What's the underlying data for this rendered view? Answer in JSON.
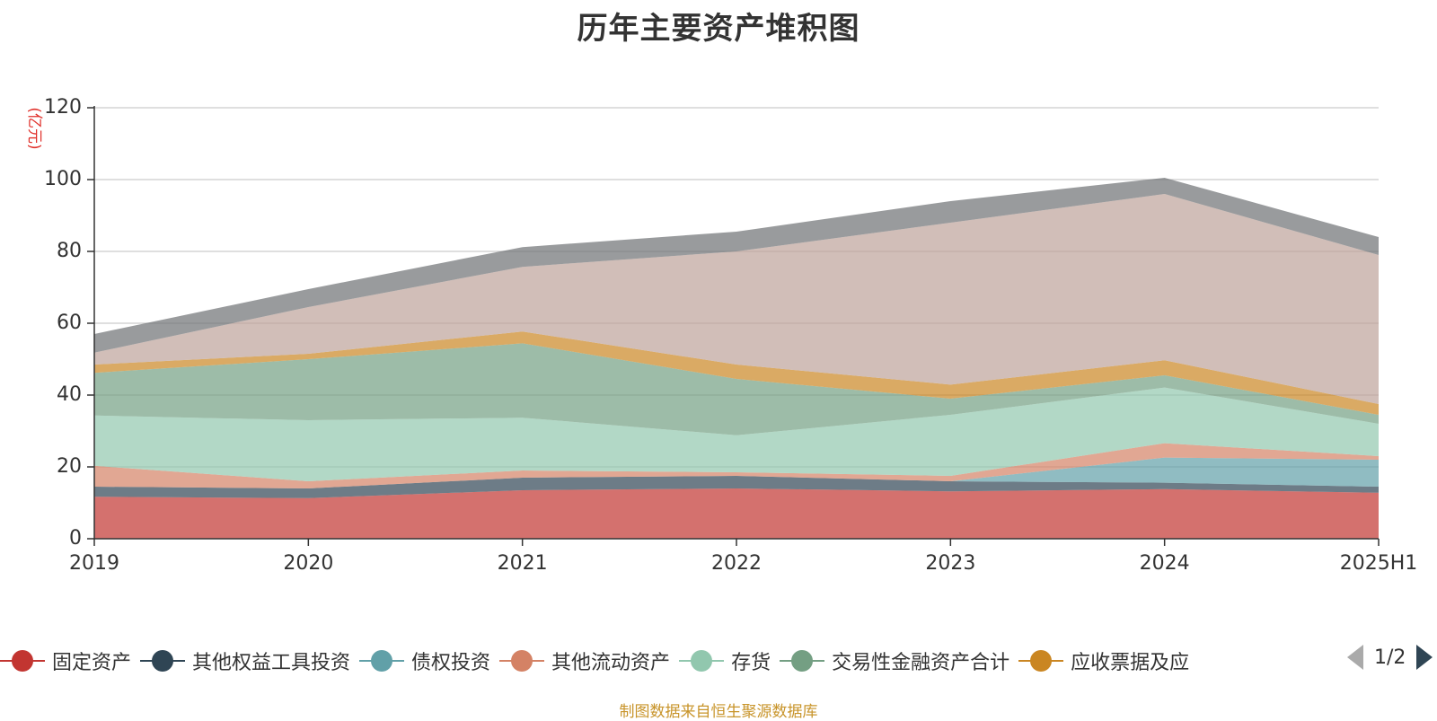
{
  "chart_data": {
    "type": "area",
    "stacked": true,
    "title": "历年主要资产堆积图",
    "ylabel": "(亿元)",
    "ylim": [
      0,
      120
    ],
    "yticks": [
      0,
      20,
      40,
      60,
      80,
      100,
      120
    ],
    "categories": [
      "2019",
      "2020",
      "2021",
      "2022",
      "2023",
      "2024",
      "2025H1"
    ],
    "grid": true,
    "legend_position": "bottom",
    "series": [
      {
        "name": "固定资产",
        "color": "#c23531",
        "values": [
          11.7,
          11.3,
          13.5,
          14.0,
          13.2,
          13.8,
          12.8
        ]
      },
      {
        "name": "其他权益工具投资",
        "color": "#2f4554",
        "values": [
          2.8,
          2.7,
          3.5,
          3.5,
          2.8,
          1.8,
          1.7
        ]
      },
      {
        "name": "债权投资",
        "color": "#61a0a8",
        "values": [
          0,
          0,
          0,
          0,
          0,
          7.0,
          7.5
        ]
      },
      {
        "name": "其他流动资产",
        "color": "#d48265",
        "values": [
          5.8,
          2.0,
          2.0,
          1.0,
          1.5,
          4.0,
          1.0
        ]
      },
      {
        "name": "存货",
        "color": "#91c7ae",
        "values": [
          14.0,
          17.0,
          14.7,
          10.3,
          17.0,
          15.5,
          9.0
        ]
      },
      {
        "name": "交易性金融资产合计",
        "color": "#749f83",
        "values": [
          11.9,
          17.0,
          20.7,
          15.7,
          4.5,
          3.4,
          2.5
        ]
      },
      {
        "name": "应收票据及应",
        "color": "#ca8622",
        "values": [
          2.3,
          1.5,
          3.3,
          4.0,
          3.9,
          4.2,
          3.0
        ]
      },
      {
        "name": "",
        "color": "#bda29a",
        "values": [
          3.3,
          13.0,
          18.0,
          31.5,
          45.1,
          46.3,
          41.5
        ]
      },
      {
        "name": "",
        "color": "#6e7074",
        "values": [
          5.2,
          5.0,
          5.5,
          5.5,
          6.0,
          4.5,
          5.0
        ]
      }
    ],
    "legend_page": "1/2",
    "source": "制图数据来自恒生聚源数据库"
  }
}
